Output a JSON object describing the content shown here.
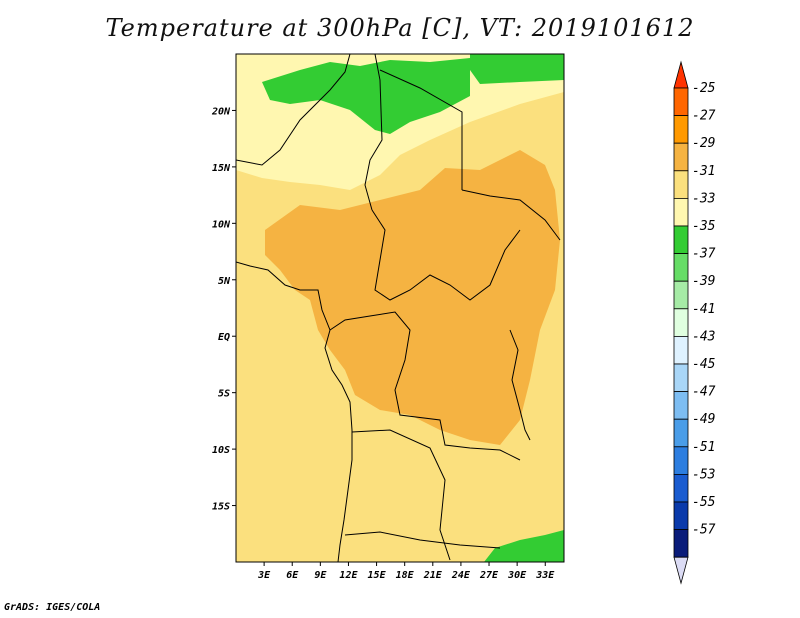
{
  "title": "Temperature at 300hPa [C], VT: 2019101612",
  "credit": "GrADS: IGES/COLA",
  "map": {
    "lon_range": [
      0,
      35
    ],
    "lat_range": [
      -20,
      25
    ],
    "lat_ticks": [
      {
        "value": 20,
        "label": "20N"
      },
      {
        "value": 15,
        "label": "15N"
      },
      {
        "value": 10,
        "label": "10N"
      },
      {
        "value": 5,
        "label": "5N"
      },
      {
        "value": 0,
        "label": "EQ"
      },
      {
        "value": -5,
        "label": "5S"
      },
      {
        "value": -10,
        "label": "10S"
      },
      {
        "value": -15,
        "label": "15S"
      }
    ],
    "lon_ticks": [
      {
        "value": 3,
        "label": "3E"
      },
      {
        "value": 6,
        "label": "6E"
      },
      {
        "value": 9,
        "label": "9E"
      },
      {
        "value": 12,
        "label": "12E"
      },
      {
        "value": 15,
        "label": "15E"
      },
      {
        "value": 18,
        "label": "18E"
      },
      {
        "value": 21,
        "label": "21E"
      },
      {
        "value": 24,
        "label": "24E"
      },
      {
        "value": 27,
        "label": "27E"
      },
      {
        "value": 30,
        "label": "30E"
      },
      {
        "value": 33,
        "label": "33E"
      }
    ]
  },
  "colorbar": {
    "levels": [
      "-25",
      "-27",
      "-29",
      "-31",
      "-33",
      "-35",
      "-37",
      "-39",
      "-41",
      "-43",
      "-45",
      "-47",
      "-49",
      "-51",
      "-53",
      "-55",
      "-57"
    ],
    "colors": [
      "#ff3300",
      "#ff6600",
      "#ff9900",
      "#f5b342",
      "#fbe07e",
      "#fff7b0",
      "#33cc33",
      "#66dd66",
      "#a6eba6",
      "#e0ffe0",
      "#dff2ff",
      "#a9d6f7",
      "#7dbdf2",
      "#4a9de8",
      "#2d7ee0",
      "#1a5cd0",
      "#0a3aab",
      "#0a1c7a",
      "#dcdcf5"
    ]
  },
  "field_colors": {
    "c33": "#fbe07e",
    "c31": "#f5b342",
    "c35": "#fff7b0",
    "c37": "#33cc33",
    "c39": "#66dd66"
  }
}
